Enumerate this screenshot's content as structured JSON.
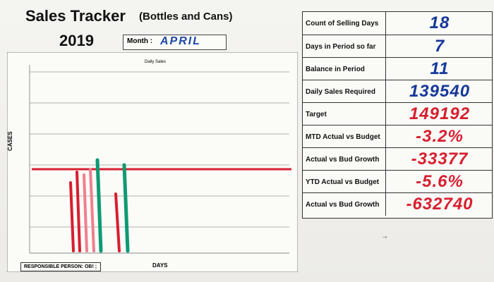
{
  "header": {
    "title": "Sales Tracker",
    "subtitle": "(Bottles and Cans)",
    "year": "2019",
    "month_label": "Month :",
    "month_value": "APRIL"
  },
  "chart": {
    "title": "Daily Sales",
    "y_label": "CASES",
    "x_label": "DAYS",
    "target_line": 149192
  },
  "table": [
    {
      "label": "Count of Selling Days",
      "value": "18",
      "color": "blue"
    },
    {
      "label": "Days in Period so far",
      "value": "7",
      "color": "blue"
    },
    {
      "label": "Balance in Period",
      "value": "11",
      "color": "blue"
    },
    {
      "label": "Daily Sales Required",
      "value": "139540",
      "color": "blue"
    },
    {
      "label": "Target",
      "value": "149192",
      "color": "red"
    },
    {
      "label": "MTD Actual vs Budget",
      "value": "-3.2%",
      "color": "red"
    },
    {
      "label": "Actual vs Bud Growth",
      "value": "-33377",
      "color": "red"
    },
    {
      "label": "YTD Actual vs Budget",
      "value": "-5.6%",
      "color": "red"
    },
    {
      "label": "Actual vs Bud Growth",
      "value": "-632740",
      "color": "red"
    }
  ],
  "responsible_person_label": "RESPONSIBLE PERSON: OB! ;",
  "arrow_text": "→"
}
